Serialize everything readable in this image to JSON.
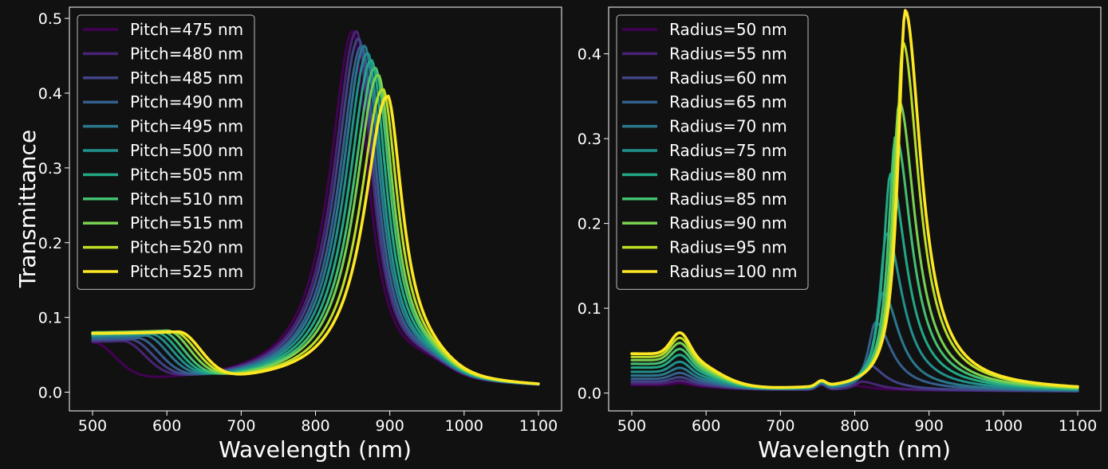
{
  "chart_data": [
    {
      "type": "line",
      "title": "",
      "xlabel": "Wavelength (nm)",
      "ylabel": "Transmittance",
      "xlim": [
        500,
        1100
      ],
      "ylim": [
        -0.025,
        0.515
      ],
      "xticks": [
        500,
        600,
        700,
        800,
        900,
        1000,
        1100
      ],
      "yticks": [
        0.0,
        0.1,
        0.2,
        0.3,
        0.4,
        0.5
      ],
      "legend_position": "top-left",
      "series": [
        {
          "name": "Pitch=475 nm",
          "color": "#440154",
          "shoulder_peak": 0.06,
          "shoulder_wavelength": 500,
          "resonance_peak": 0.49,
          "resonance_wavelength": 850
        },
        {
          "name": "Pitch=480 nm",
          "color": "#482475",
          "shoulder_peak": 0.061,
          "shoulder_wavelength": 540,
          "resonance_peak": 0.49,
          "resonance_wavelength": 855
        },
        {
          "name": "Pitch=485 nm",
          "color": "#414487",
          "shoulder_peak": 0.063,
          "shoulder_wavelength": 550,
          "resonance_peak": 0.48,
          "resonance_wavelength": 858
        },
        {
          "name": "Pitch=490 nm",
          "color": "#355f8d",
          "shoulder_peak": 0.065,
          "shoulder_wavelength": 560,
          "resonance_peak": 0.47,
          "resonance_wavelength": 862
        },
        {
          "name": "Pitch=495 nm",
          "color": "#2a788e",
          "shoulder_peak": 0.068,
          "shoulder_wavelength": 570,
          "resonance_peak": 0.47,
          "resonance_wavelength": 866
        },
        {
          "name": "Pitch=500 nm",
          "color": "#21918c",
          "shoulder_peak": 0.07,
          "shoulder_wavelength": 578,
          "resonance_peak": 0.46,
          "resonance_wavelength": 870
        },
        {
          "name": "Pitch=505 nm",
          "color": "#22a884",
          "shoulder_peak": 0.072,
          "shoulder_wavelength": 585,
          "resonance_peak": 0.45,
          "resonance_wavelength": 875
        },
        {
          "name": "Pitch=510 nm",
          "color": "#44bf70",
          "shoulder_peak": 0.074,
          "shoulder_wavelength": 592,
          "resonance_peak": 0.44,
          "resonance_wavelength": 880
        },
        {
          "name": "Pitch=515 nm",
          "color": "#7ad151",
          "shoulder_peak": 0.075,
          "shoulder_wavelength": 600,
          "resonance_peak": 0.43,
          "resonance_wavelength": 884
        },
        {
          "name": "Pitch=520 nm",
          "color": "#bddf26",
          "shoulder_peak": 0.074,
          "shoulder_wavelength": 608,
          "resonance_peak": 0.41,
          "resonance_wavelength": 890
        },
        {
          "name": "Pitch=525 nm",
          "color": "#fde725",
          "shoulder_peak": 0.074,
          "shoulder_wavelength": 615,
          "resonance_peak": 0.4,
          "resonance_wavelength": 896
        }
      ]
    },
    {
      "type": "line",
      "title": "",
      "xlabel": "Wavelength (nm)",
      "ylabel": "",
      "xlim": [
        500,
        1100
      ],
      "ylim": [
        -0.021,
        0.455
      ],
      "xticks": [
        500,
        600,
        700,
        800,
        900,
        1000,
        1100
      ],
      "yticks": [
        0.0,
        0.1,
        0.2,
        0.3,
        0.4
      ],
      "legend_position": "top-left",
      "series": [
        {
          "name": "Radius=50 nm",
          "color": "#440154",
          "shoulder_peak": 0.007,
          "shoulder_wavelength": 565,
          "resonance_peak": 0.005,
          "resonance_wavelength": 800
        },
        {
          "name": "Radius=55 nm",
          "color": "#482475",
          "shoulder_peak": 0.01,
          "shoulder_wavelength": 565,
          "resonance_peak": 0.01,
          "resonance_wavelength": 810
        },
        {
          "name": "Radius=60 nm",
          "color": "#414487",
          "shoulder_peak": 0.014,
          "shoulder_wavelength": 565,
          "resonance_peak": 0.03,
          "resonance_wavelength": 818
        },
        {
          "name": "Radius=65 nm",
          "color": "#355f8d",
          "shoulder_peak": 0.019,
          "shoulder_wavelength": 565,
          "resonance_peak": 0.08,
          "resonance_wavelength": 828
        },
        {
          "name": "Radius=70 nm",
          "color": "#2a788e",
          "shoulder_peak": 0.025,
          "shoulder_wavelength": 565,
          "resonance_peak": 0.115,
          "resonance_wavelength": 838
        },
        {
          "name": "Radius=75 nm",
          "color": "#21918c",
          "shoulder_peak": 0.032,
          "shoulder_wavelength": 565,
          "resonance_peak": 0.185,
          "resonance_wavelength": 843
        },
        {
          "name": "Radius=80 nm",
          "color": "#22a884",
          "shoulder_peak": 0.04,
          "shoulder_wavelength": 565,
          "resonance_peak": 0.255,
          "resonance_wavelength": 848
        },
        {
          "name": "Radius=85 nm",
          "color": "#44bf70",
          "shoulder_peak": 0.047,
          "shoulder_wavelength": 565,
          "resonance_peak": 0.3,
          "resonance_wavelength": 855
        },
        {
          "name": "Radius=90 nm",
          "color": "#7ad151",
          "shoulder_peak": 0.054,
          "shoulder_wavelength": 565,
          "resonance_peak": 0.34,
          "resonance_wavelength": 860
        },
        {
          "name": "Radius=95 nm",
          "color": "#bddf26",
          "shoulder_peak": 0.06,
          "shoulder_wavelength": 565,
          "resonance_peak": 0.41,
          "resonance_wavelength": 865
        },
        {
          "name": "Radius=100 nm",
          "color": "#fde725",
          "shoulder_peak": 0.066,
          "shoulder_wavelength": 565,
          "resonance_peak": 0.448,
          "resonance_wavelength": 868
        }
      ]
    }
  ]
}
